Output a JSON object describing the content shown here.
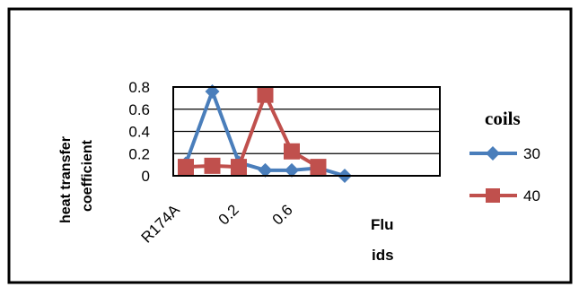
{
  "chart_data": {
    "type": "line",
    "ylabel_line1": "heat transfer",
    "ylabel_line2": "coefficient",
    "xlabel_line1": "Flu",
    "xlabel_line2": "ids",
    "x_tick_labels": [
      "R174A",
      "0.2",
      "0.6"
    ],
    "y_tick_labels": [
      "0.8",
      "0.6",
      "0.4",
      "0.2",
      "0"
    ],
    "ylim": [
      0,
      0.8
    ],
    "legend_title": "coils",
    "legend_placement": "right",
    "grid": "horizontal",
    "series": [
      {
        "name": "30",
        "color": "#4a7ebb",
        "marker": "diamond",
        "x": [
          1,
          2,
          3,
          4,
          5,
          6,
          7
        ],
        "y": [
          0.11,
          0.76,
          0.12,
          0.05,
          0.05,
          0.07,
          0.0
        ]
      },
      {
        "name": "40",
        "color": "#c0504d",
        "marker": "square",
        "x": [
          1,
          2,
          3,
          4,
          5,
          6
        ],
        "y": [
          0.08,
          0.09,
          0.08,
          0.73,
          0.22,
          0.08
        ]
      }
    ]
  }
}
